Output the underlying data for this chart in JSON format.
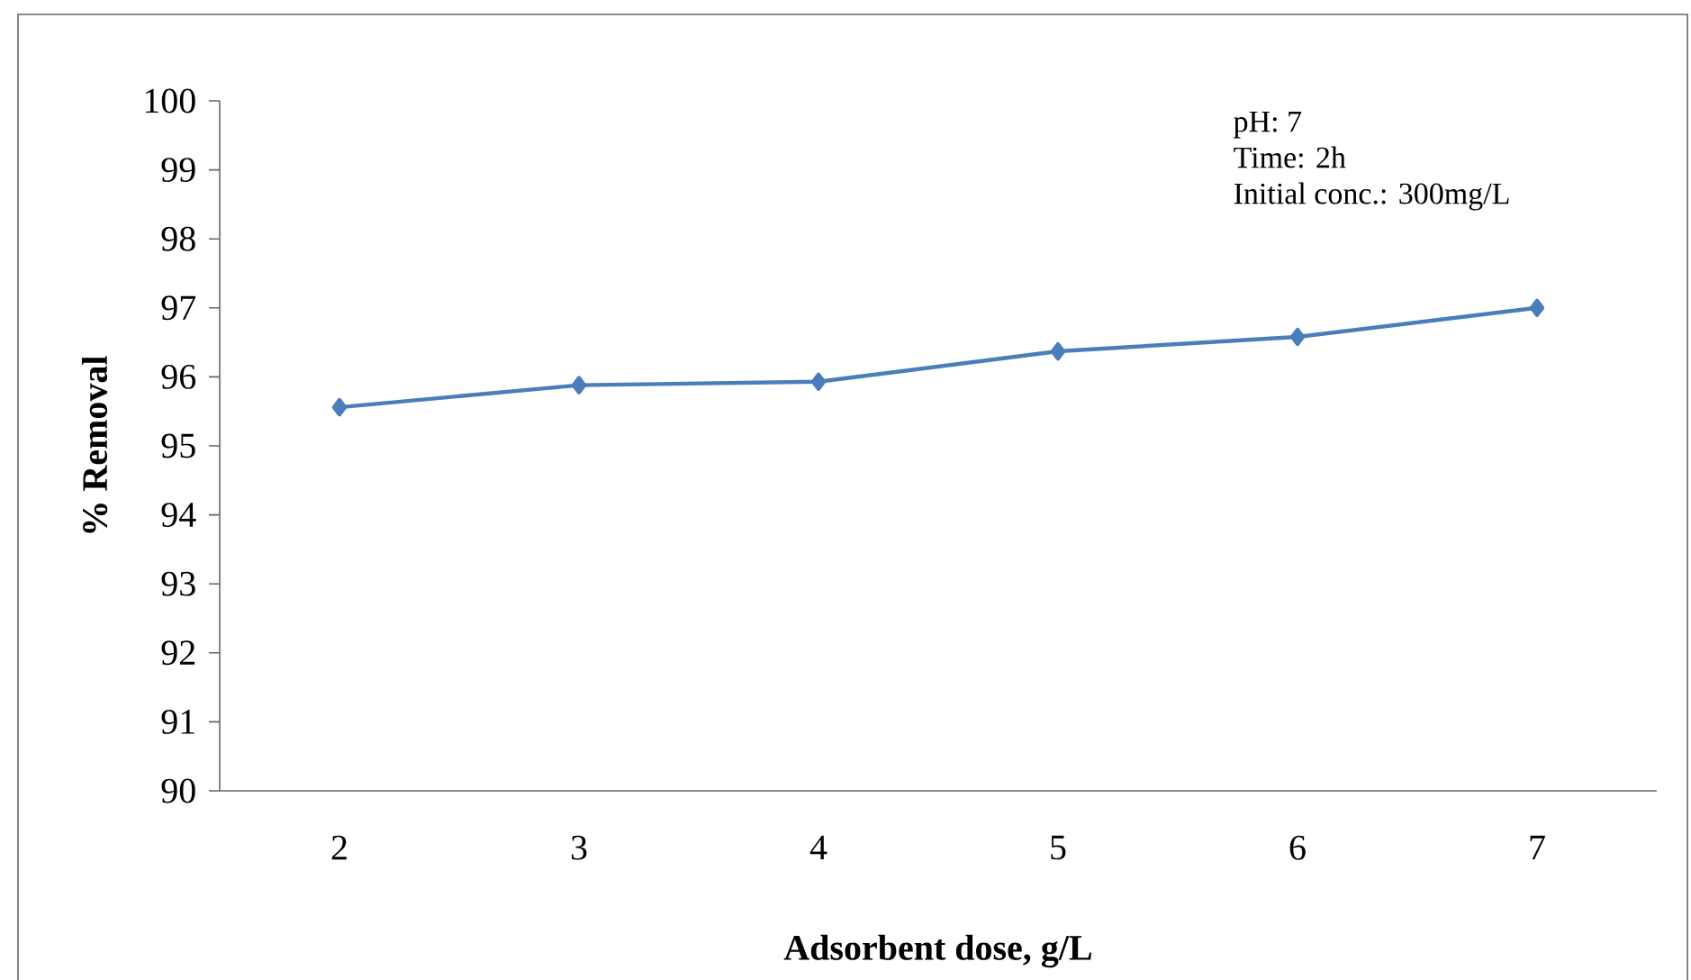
{
  "chart_data": {
    "type": "line",
    "xlabel": "Adsorbent dose, g/L",
    "ylabel": "% Removal",
    "categories": [
      "2",
      "3",
      "4",
      "5",
      "6",
      "7"
    ],
    "values": [
      95.56,
      95.88,
      95.93,
      96.37,
      96.58,
      97.0
    ],
    "color": "#4a7ebb",
    "marker": "diamond",
    "line_style": "solid",
    "ylim": [
      90,
      100
    ],
    "yticks": [
      90,
      91,
      92,
      93,
      94,
      95,
      96,
      97,
      98,
      99,
      100
    ],
    "grid": false,
    "annotations": [
      "pH: 7",
      "Time: 2h",
      "Initial conc.: 300mg/L"
    ]
  }
}
